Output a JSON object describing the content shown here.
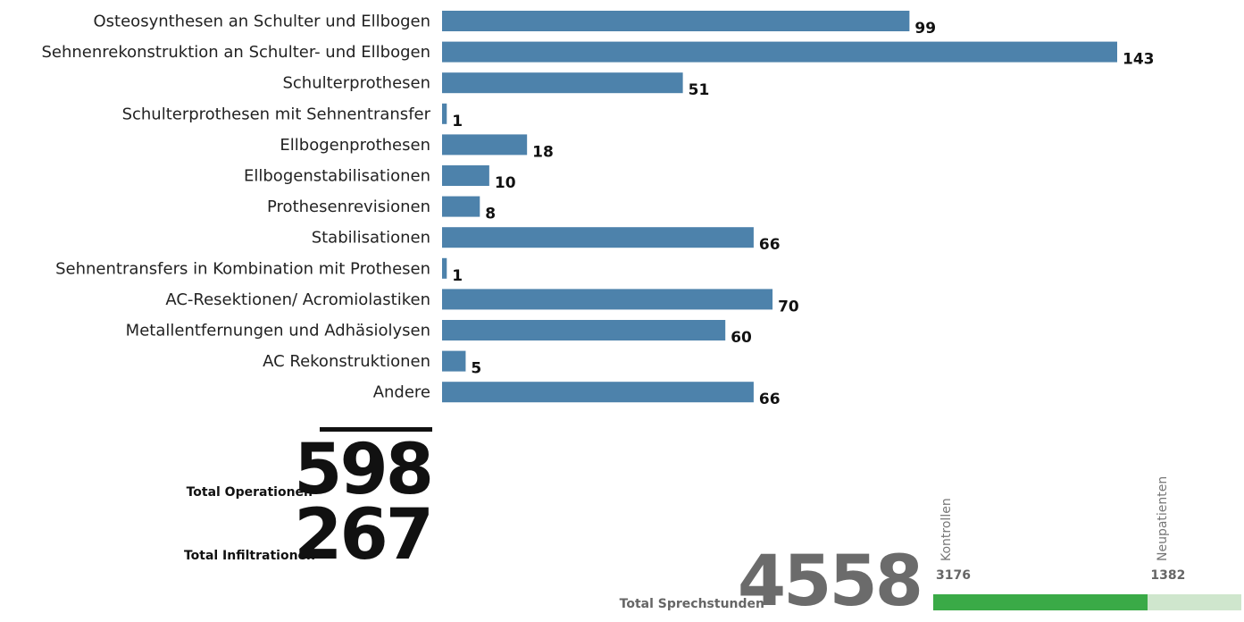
{
  "chart_data": {
    "type": "bar",
    "orientation": "horizontal",
    "categories": [
      "Osteosynthesen an Schulter und Ellbogen",
      "Sehnenrekonstruktion an Schulter- und Ellbogen",
      "Schulterprothesen",
      "Schulterprothesen mit Sehnentransfer",
      "Ellbogenprothesen",
      "Ellbogenstabilisationen",
      "Prothesenrevisionen",
      "Stabilisationen",
      "Sehnentransfers in Kombination mit Prothesen",
      "AC-Resektionen/ Acromiolastiken",
      "Metallentfernungen und Adhäsiolysen",
      "AC Rekonstruktionen",
      "Andere"
    ],
    "values": [
      99,
      143,
      51,
      1,
      18,
      10,
      8,
      66,
      1,
      70,
      60,
      5,
      66
    ],
    "data_labels": [
      "99",
      "143",
      "51",
      "1",
      "18",
      "10",
      "8",
      "66",
      "1",
      "70",
      "60",
      "5",
      "66"
    ],
    "xlim": [
      0,
      143
    ],
    "grid": false,
    "legend": "none",
    "bar_color": "#4d82ab"
  },
  "totals": {
    "operationen_label": "Total Operationen",
    "operationen_value": "598",
    "infiltrationen_label": "Total Infiltrationen",
    "infiltrationen_value": "267"
  },
  "sprechstunden": {
    "label": "Total Sprechstunden",
    "value": "4558",
    "segments": [
      {
        "name": "Kontrollen",
        "value": 3176,
        "display": "3176",
        "color": "#3aaa47"
      },
      {
        "name": "Neupatienten",
        "value": 1382,
        "display": "1382",
        "color": "#cfe6cd"
      }
    ]
  }
}
